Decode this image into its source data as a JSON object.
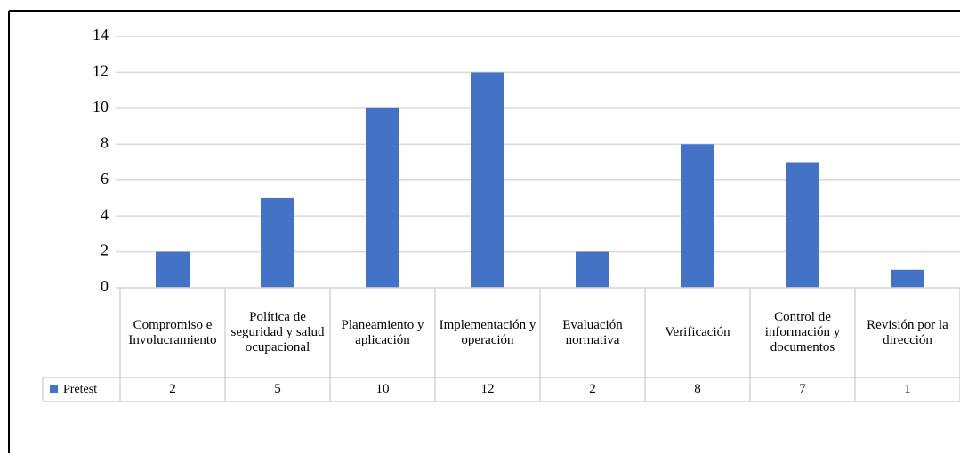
{
  "chart_data": {
    "type": "bar",
    "categories": [
      "Compromiso e Involucramiento",
      "Política de seguridad y salud ocupacional",
      "Planeamiento y aplicación",
      "Implementación y operación",
      "Evaluación normativa",
      "Verificación",
      "Control de información y documentos",
      "Revisión por la dirección"
    ],
    "series": [
      {
        "name": "Pretest",
        "color": "#4472c4",
        "values": [
          2,
          5,
          10,
          12,
          2,
          8,
          7,
          1
        ]
      }
    ],
    "ylim": [
      0,
      14
    ],
    "yticks": [
      0,
      2,
      4,
      6,
      8,
      10,
      12,
      14
    ],
    "grid": true,
    "legend": "table"
  }
}
